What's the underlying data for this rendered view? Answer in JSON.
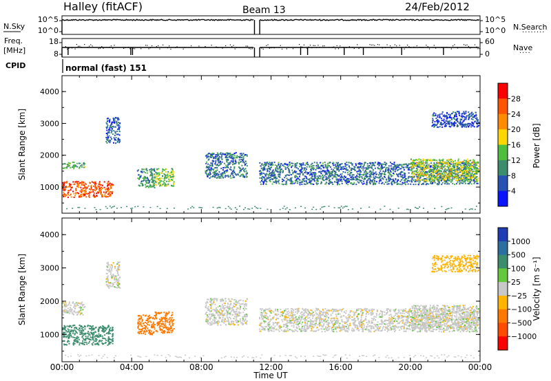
{
  "header": {
    "station": "Halley (fitACF)",
    "beam": "Beam 13",
    "date": "24/Feb/2012"
  },
  "params": {
    "nsky_label": "N.Sky",
    "nsky_ticks": [
      "10^5",
      "10^0"
    ],
    "nsearch_label": "N.Search",
    "nsearch_ticks": [
      "10^5",
      "10^0"
    ],
    "freq_label_1": "Freq.",
    "freq_label_2": "[MHz]",
    "freq_ticks": [
      "18",
      "8"
    ],
    "nave_label": "Nave",
    "nave_ticks": [
      "60",
      "0"
    ],
    "cpid_label": "CPID",
    "cpid_text": "normal (fast) 151"
  },
  "panels": {
    "ylabel": "Slant Range [km]",
    "yticks": [
      "4000",
      "3000",
      "2000",
      "1000"
    ],
    "xlabel": "Time UT",
    "xticks": [
      "00:00",
      "04:00",
      "08:00",
      "12:00",
      "16:00",
      "20:00",
      "00:00"
    ]
  },
  "colorbars": {
    "power": {
      "label": "Power [dB]",
      "ticks": [
        "28",
        "24",
        "20",
        "16",
        "12",
        "8",
        "4"
      ],
      "colors": [
        "#ff0000",
        "#ff5500",
        "#ff8c00",
        "#ffd700",
        "#4fbe3c",
        "#3c8c6e",
        "#2851b4",
        "#0a14ff"
      ]
    },
    "velocity": {
      "label": "Velocity [m s⁻¹]",
      "ticks": [
        "1000",
        "500",
        "100",
        "25",
        "−25",
        "−100",
        "−500",
        "−1000"
      ],
      "colors": [
        "#1e3cb4",
        "#2d6ea0",
        "#3c8c6e",
        "#64c83c",
        "#c8c8c8",
        "#ffb400",
        "#ff7800",
        "#ff4b00",
        "#ff0000"
      ]
    }
  },
  "chart_data": [
    {
      "type": "heatmap",
      "title": "Power [dB]",
      "xlabel": "Time UT",
      "ylabel": "Slant Range [km]",
      "xlim": [
        "00:00",
        "24:00"
      ],
      "ylim": [
        180,
        4500
      ],
      "regions": [
        {
          "t": [
            0.0,
            2.9
          ],
          "range": [
            700,
            1200
          ],
          "value": 26
        },
        {
          "t": [
            0.0,
            1.3
          ],
          "range": [
            1600,
            1800
          ],
          "value": 12
        },
        {
          "t": [
            2.5,
            3.3
          ],
          "range": [
            2400,
            3200
          ],
          "value": 6
        },
        {
          "t": [
            4.3,
            5.3
          ],
          "range": [
            1000,
            1600
          ],
          "value": 10
        },
        {
          "t": [
            5.3,
            6.4
          ],
          "range": [
            1050,
            1600
          ],
          "value": 14
        },
        {
          "t": [
            8.2,
            10.6
          ],
          "range": [
            1300,
            2100
          ],
          "value": 8
        },
        {
          "t": [
            11.3,
            23.9
          ],
          "range": [
            1100,
            1800
          ],
          "value": 8
        },
        {
          "t": [
            20.0,
            23.9
          ],
          "range": [
            1200,
            1900
          ],
          "value": 16
        },
        {
          "t": [
            21.2,
            23.9
          ],
          "range": [
            2900,
            3400
          ],
          "value": 5
        }
      ]
    },
    {
      "type": "heatmap",
      "title": "Velocity [m s⁻¹]",
      "xlabel": "Time UT",
      "ylabel": "Slant Range [km]",
      "xlim": [
        "00:00",
        "24:00"
      ],
      "ylim": [
        180,
        4500
      ],
      "regions": [
        {
          "t": [
            0.0,
            2.9
          ],
          "range": [
            700,
            1300
          ],
          "value": 400
        },
        {
          "t": [
            0.0,
            1.3
          ],
          "range": [
            1600,
            2000
          ],
          "value": 0
        },
        {
          "t": [
            2.5,
            3.3
          ],
          "range": [
            2400,
            3200
          ],
          "value": 0
        },
        {
          "t": [
            4.3,
            5.3
          ],
          "range": [
            1000,
            1600
          ],
          "value": -150
        },
        {
          "t": [
            5.3,
            6.4
          ],
          "range": [
            1050,
            1700
          ],
          "value": -300
        },
        {
          "t": [
            8.2,
            10.6
          ],
          "range": [
            1300,
            2100
          ],
          "value": 0
        },
        {
          "t": [
            11.3,
            23.9
          ],
          "range": [
            1100,
            1800
          ],
          "value": 0
        },
        {
          "t": [
            20.0,
            23.9
          ],
          "range": [
            1200,
            1900
          ],
          "value": 0
        },
        {
          "t": [
            21.2,
            23.9
          ],
          "range": [
            2900,
            3400
          ],
          "value": -50
        }
      ]
    }
  ]
}
